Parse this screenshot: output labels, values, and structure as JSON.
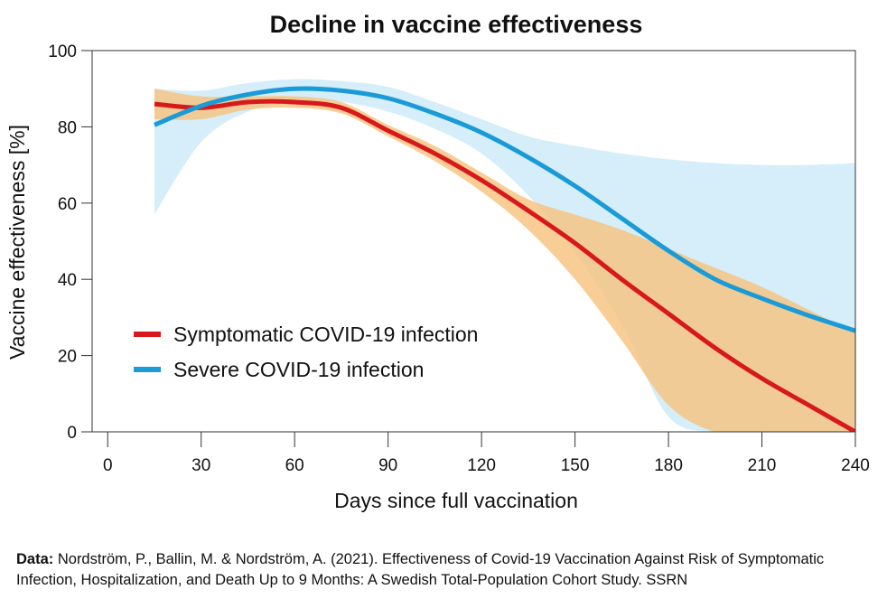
{
  "chart_data": {
    "type": "line",
    "title": "Decline in vaccine effectiveness",
    "xlabel": "Days since full vaccination",
    "ylabel": "Vaccine effectiveness [%]",
    "xlim": [
      -5,
      240
    ],
    "ylim": [
      0,
      100
    ],
    "xticks": [
      0,
      30,
      60,
      90,
      120,
      150,
      180,
      210,
      240
    ],
    "yticks": [
      0,
      20,
      40,
      60,
      80,
      100
    ],
    "grid": false,
    "legend_position": "lower-left",
    "series": [
      {
        "name": "Symptomatic COVID-19 infection",
        "color": "#d7191c",
        "band_color": "#f7c27c",
        "x": [
          15,
          30,
          45,
          60,
          75,
          90,
          105,
          120,
          135,
          150,
          165,
          180,
          195,
          210,
          225,
          240
        ],
        "y": [
          86,
          85,
          86.5,
          86.5,
          85,
          79,
          73,
          66,
          58,
          49.5,
          40,
          31,
          22,
          14,
          7,
          0
        ],
        "upper": [
          90,
          88,
          88,
          88,
          86.5,
          80.5,
          75,
          68,
          61,
          57,
          53,
          48,
          43,
          38,
          32,
          26
        ],
        "lower": [
          82,
          82,
          84.5,
          85,
          83.5,
          77.5,
          71,
          63,
          53,
          40,
          24,
          7,
          0,
          0,
          0,
          0
        ]
      },
      {
        "name": "Severe COVID-19 infection",
        "color": "#1a9bd7",
        "band_color": "#d5eef9",
        "x": [
          15,
          30,
          45,
          60,
          75,
          90,
          105,
          120,
          135,
          150,
          165,
          180,
          195,
          210,
          225,
          240
        ],
        "y": [
          80.5,
          85.5,
          88.5,
          90,
          89.5,
          87.5,
          83.5,
          78.5,
          72,
          64.5,
          56,
          47.5,
          40,
          35,
          30.5,
          26.5
        ],
        "upper": [
          90,
          89.5,
          91.5,
          92.5,
          92,
          90.5,
          86.5,
          82,
          77.5,
          75,
          73,
          71.5,
          70.5,
          70,
          70,
          70.5
        ],
        "lower": [
          57,
          76,
          84,
          86.5,
          86.5,
          84,
          79.5,
          73,
          62,
          47,
          28,
          4,
          0,
          0,
          0,
          0
        ]
      }
    ]
  },
  "source": {
    "label": "Data:",
    "text": " Nordström, P., Ballin, M. & Nordström, A. (2021). Effectiveness of Covid-19 Vaccination Against Risk of Symptomatic Infection, Hospitalization, and Death Up to 9 Months: A Swedish Total-Population Cohort Study. SSRN"
  }
}
